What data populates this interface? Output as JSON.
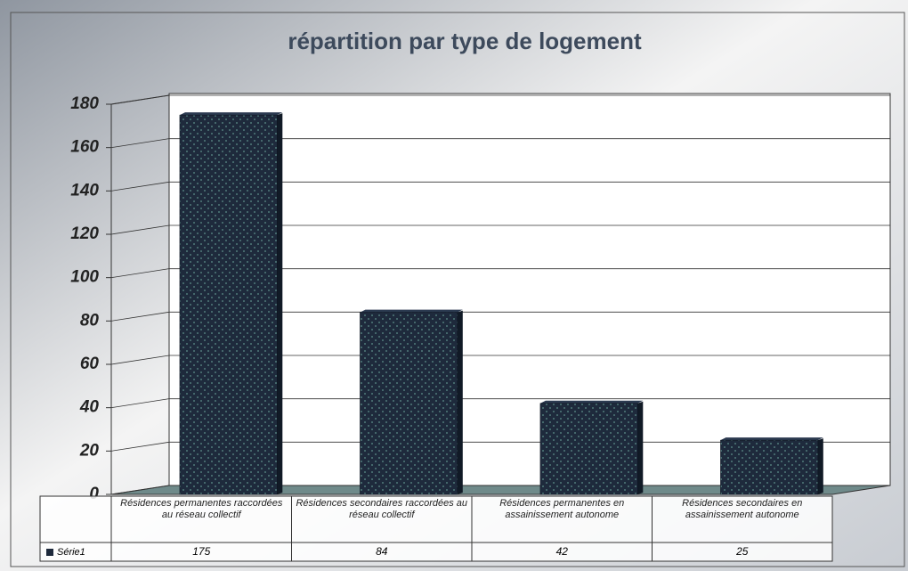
{
  "chart_data": {
    "type": "bar",
    "title": "répartition par type de logement",
    "categories": [
      "Résidences permanentes raccordées au réseau collectif",
      "Résidences secondaires raccordées au réseau collectif",
      "Résidences permanentes en assainissement autonome",
      "Résidences secondaires en assainissement autonome"
    ],
    "series": [
      {
        "name": "Série1",
        "color": "#1e2a3c",
        "values": [
          175,
          84,
          42,
          25
        ]
      }
    ],
    "ylim": [
      0,
      180
    ],
    "yticks": [
      0,
      20,
      40,
      60,
      80,
      100,
      120,
      140,
      160,
      180
    ],
    "grid": true
  }
}
